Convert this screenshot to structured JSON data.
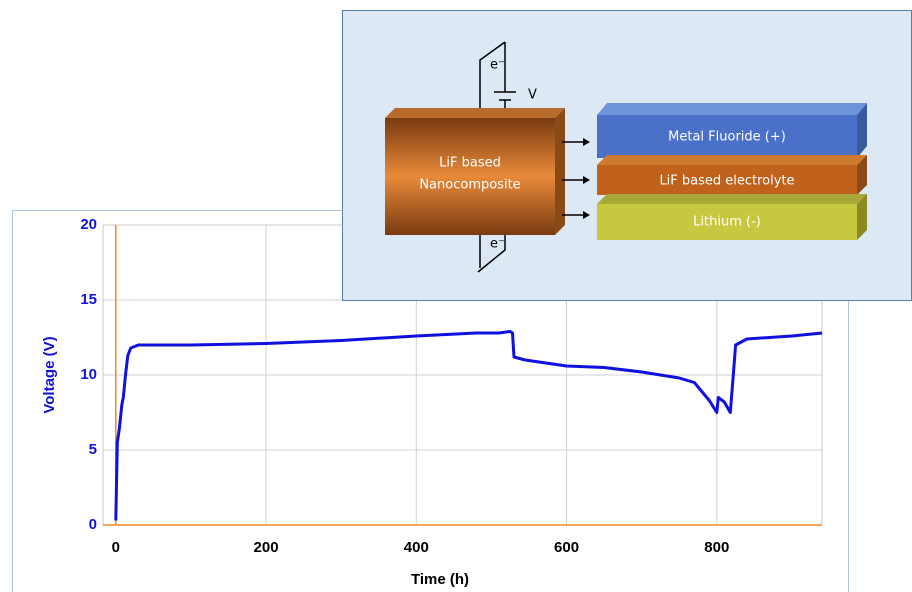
{
  "chart_data": {
    "type": "line",
    "x_label": "Time (h)",
    "y_label": "Voltage (V)",
    "xlim": [
      -17,
      940
    ],
    "ylim": [
      0,
      20
    ],
    "xticks": [
      0,
      200,
      400,
      600,
      800
    ],
    "yticks": [
      0,
      5,
      10,
      15,
      20
    ],
    "grid": true,
    "series": [
      {
        "color": "#1010e0",
        "x": [
          0,
          2,
          5,
          8,
          10,
          13,
          16,
          20,
          30,
          100,
          200,
          300,
          400,
          480,
          510,
          525,
          528,
          530,
          545,
          600,
          650,
          700,
          750,
          770,
          790,
          800,
          802,
          810,
          818,
          822,
          825,
          840,
          900,
          940
        ],
        "values": [
          0.3,
          5.5,
          6.5,
          8,
          8.5,
          10,
          11.3,
          11.8,
          12,
          12,
          12.1,
          12.3,
          12.6,
          12.8,
          12.8,
          12.9,
          12.8,
          11.2,
          11,
          10.6,
          10.5,
          10.2,
          9.8,
          9.5,
          8.3,
          7.5,
          8.5,
          8.2,
          7.5,
          10,
          12,
          12.4,
          12.6,
          12.8
        ]
      }
    ]
  },
  "inset": {
    "electron_top": "e⁻",
    "electron_bottom": "e⁻",
    "voltage": "V",
    "source_line1": "LiF based",
    "source_line2": "Nanocomposite",
    "layers": [
      "Metal Fluoride (+)",
      "LiF based electrolyte",
      "Lithium (-)"
    ]
  }
}
